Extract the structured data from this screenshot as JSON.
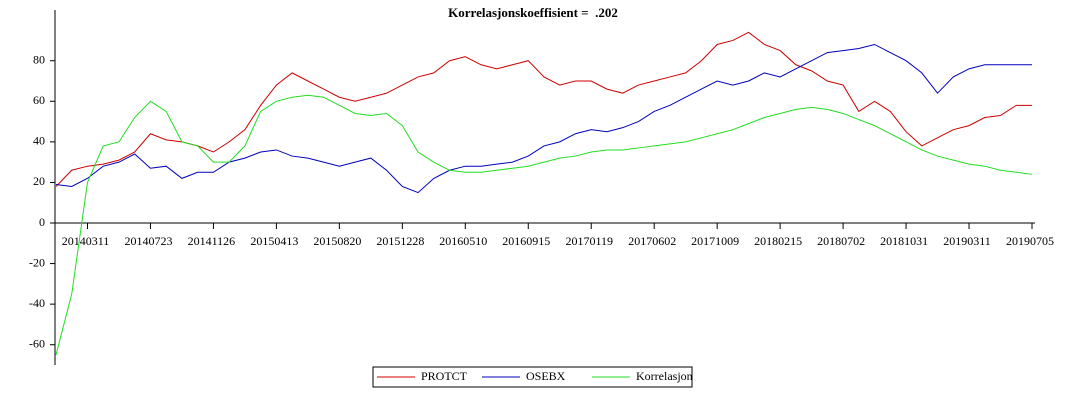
{
  "chart_data": {
    "type": "line",
    "title": "Korrelasjonskoeffisient =  .202",
    "categories": [
      null,
      null,
      "20140311",
      null,
      null,
      null,
      "20140723",
      null,
      null,
      null,
      "20141126",
      null,
      null,
      null,
      "20150413",
      null,
      null,
      null,
      "20150820",
      null,
      null,
      null,
      "20151228",
      null,
      null,
      null,
      "20160510",
      null,
      null,
      null,
      "20160915",
      null,
      null,
      null,
      "20170119",
      null,
      null,
      null,
      "20170602",
      null,
      null,
      null,
      "20171009",
      null,
      null,
      null,
      "20180215",
      null,
      null,
      null,
      "20180702",
      null,
      null,
      null,
      "20181031",
      null,
      null,
      null,
      "20190311",
      null,
      null,
      null,
      "20190705"
    ],
    "series": [
      {
        "name": "PROTCT",
        "color": "#cc0000",
        "values": [
          18,
          26,
          28,
          29,
          31,
          35,
          44,
          41,
          40,
          38,
          35,
          40,
          46,
          58,
          68,
          74,
          70,
          66,
          62,
          60,
          62,
          64,
          68,
          72,
          74,
          80,
          82,
          78,
          76,
          78,
          80,
          72,
          68,
          70,
          70,
          66,
          64,
          68,
          70,
          72,
          74,
          80,
          88,
          90,
          94,
          88,
          85,
          78,
          75,
          70,
          68,
          55,
          60,
          55,
          45,
          38,
          42,
          46,
          48,
          52,
          53,
          58,
          58
        ]
      },
      {
        "name": "OSEBX",
        "color": "#0000bb",
        "values": [
          19,
          18,
          22,
          28,
          30,
          34,
          27,
          28,
          22,
          25,
          25,
          30,
          32,
          35,
          36,
          33,
          32,
          30,
          28,
          30,
          32,
          26,
          18,
          15,
          22,
          26,
          28,
          28,
          29,
          30,
          33,
          38,
          40,
          44,
          46,
          45,
          47,
          50,
          55,
          58,
          62,
          66,
          70,
          68,
          70,
          74,
          72,
          76,
          80,
          84,
          85,
          86,
          88,
          84,
          80,
          74,
          64,
          72,
          76,
          78,
          78,
          78,
          78
        ]
      },
      {
        "name": "Korrelasjon",
        "color": "#22dd22",
        "values": [
          -65,
          -35,
          20,
          38,
          40,
          52,
          60,
          55,
          40,
          38,
          30,
          30,
          38,
          55,
          60,
          62,
          63,
          62,
          58,
          54,
          53,
          54,
          48,
          35,
          30,
          26,
          25,
          25,
          26,
          27,
          28,
          30,
          32,
          33,
          35,
          36,
          36,
          37,
          38,
          39,
          40,
          42,
          44,
          46,
          49,
          52,
          54,
          56,
          57,
          56,
          54,
          51,
          48,
          44,
          40,
          36,
          33,
          31,
          29,
          28,
          26,
          25,
          24
        ]
      }
    ],
    "ylim": [
      -70,
      105
    ],
    "yticks": [
      -60,
      -40,
      -20,
      0,
      20,
      40,
      60,
      80
    ],
    "legend": "bottom"
  }
}
